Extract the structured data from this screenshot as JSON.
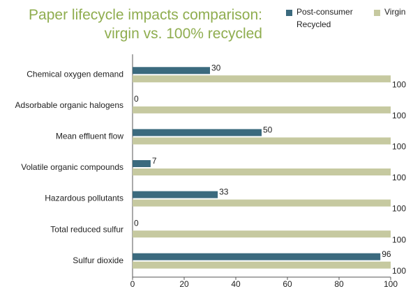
{
  "chart_data": {
    "type": "bar",
    "orientation": "horizontal",
    "title": "Paper lifecycle impacts comparison: virgin vs. 100% recycled",
    "categories": [
      "Chemical oxygen demand",
      "Adsorbable organic halogens",
      "Mean effluent flow",
      "Volatile organic compounds",
      "Hazardous pollutants",
      "Total reduced sulfur",
      "Sulfur dioxide"
    ],
    "series": [
      {
        "name": "Post-consumer Recycled",
        "color": "#3b6a7e",
        "values": [
          30,
          0,
          50,
          7,
          33,
          0,
          96
        ]
      },
      {
        "name": "Virgin",
        "color": "#c6c9a0",
        "values": [
          100,
          100,
          100,
          100,
          100,
          100,
          100
        ]
      }
    ],
    "xlim": [
      0,
      100
    ],
    "xticks": [
      0,
      20,
      40,
      60,
      80,
      100
    ]
  }
}
